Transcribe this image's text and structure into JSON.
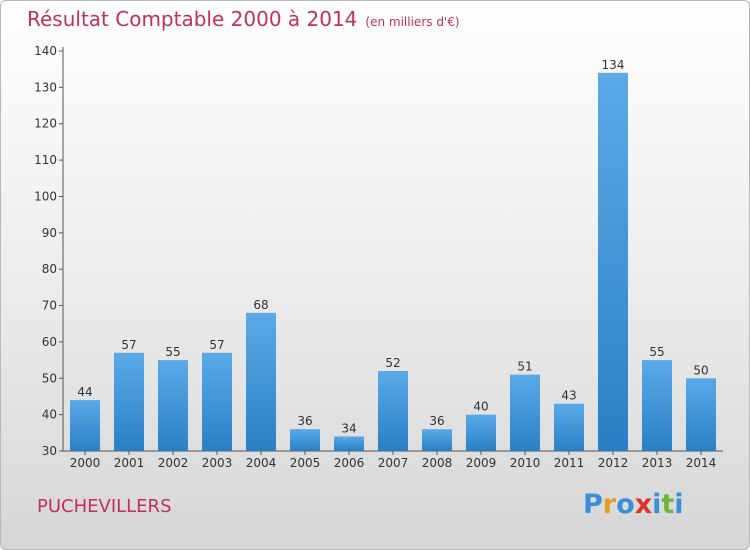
{
  "title": "Résultat Comptable 2000 à 2014",
  "unit": "(en milliers d'€)",
  "commune": "PUCHEVILLERS",
  "logo": {
    "letters": [
      "P",
      "r",
      "o",
      "x",
      "i",
      "t",
      "i"
    ],
    "colors": [
      "#3a8fd6",
      "#e2a020",
      "#3a8fd6",
      "#d9342b",
      "#3a8fd6",
      "#6fb43a",
      "#3a8fd6"
    ]
  },
  "colors": {
    "bar_light": "#5aaae8",
    "bar_dark": "#2a7fc4",
    "title": "#c0305a"
  },
  "chart_data": {
    "type": "bar",
    "categories": [
      "2000",
      "2001",
      "2002",
      "2003",
      "2004",
      "2005",
      "2006",
      "2007",
      "2008",
      "2009",
      "2010",
      "2011",
      "2012",
      "2013",
      "2014"
    ],
    "values": [
      44,
      57,
      55,
      57,
      68,
      36,
      34,
      52,
      36,
      40,
      51,
      43,
      134,
      55,
      50
    ],
    "ylim": [
      30,
      140
    ],
    "yticks": [
      30,
      40,
      50,
      60,
      70,
      80,
      90,
      100,
      110,
      120,
      130,
      140
    ],
    "grid": false
  }
}
